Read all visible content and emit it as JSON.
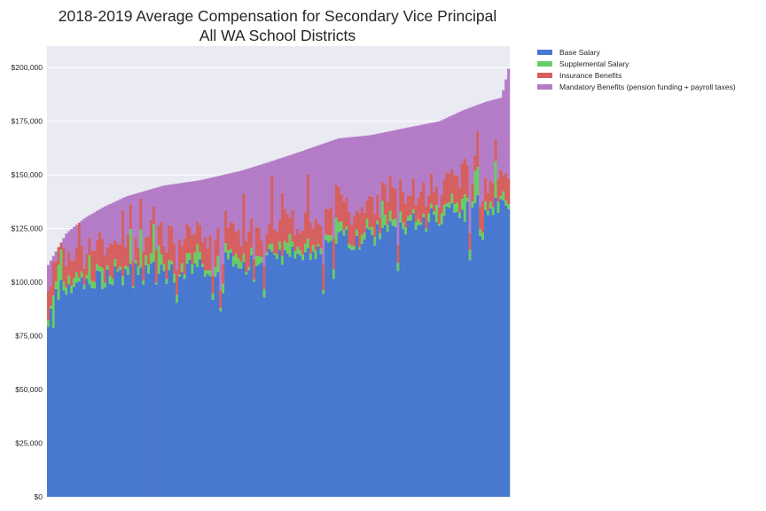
{
  "chart_data": {
    "type": "bar",
    "stacked": true,
    "title": "2018-2019 Average Compensation for Secondary Vice Principal",
    "subtitle": "All WA School Districts",
    "xlabel": "",
    "ylabel": "",
    "ylim": [
      0,
      210000
    ],
    "yticks": [
      0,
      25000,
      50000,
      75000,
      100000,
      125000,
      150000,
      175000,
      200000
    ],
    "ytick_labels": [
      "$0",
      "$25,000",
      "$50,000",
      "$75,000",
      "$100,000",
      "$125,000",
      "$150,000",
      "$175,000",
      "$200,000"
    ],
    "grid": true,
    "x_tick_labels_shown": false,
    "legend_position": "outside top-right",
    "bar_count": 180,
    "series": [
      {
        "name": "Base Salary",
        "color": "#4878cf"
      },
      {
        "name": "Supplemental Salary",
        "color": "#6acc65"
      },
      {
        "name": "Insurance Benefits",
        "color": "#d65f5f"
      },
      {
        "name": "Mandatory Benefits (pension funding + payroll taxes)",
        "color": "#b47cc7"
      }
    ],
    "total_profile": [
      [
        0,
        108000
      ],
      [
        0.04,
        123000
      ],
      [
        0.08,
        130000
      ],
      [
        0.12,
        135000
      ],
      [
        0.17,
        140000
      ],
      [
        0.25,
        145000
      ],
      [
        0.33,
        147500
      ],
      [
        0.42,
        152000
      ],
      [
        0.48,
        156000
      ],
      [
        0.55,
        161000
      ],
      [
        0.63,
        167000
      ],
      [
        0.7,
        168500
      ],
      [
        0.78,
        172000
      ],
      [
        0.85,
        175000
      ],
      [
        0.9,
        180000
      ],
      [
        0.95,
        184000
      ],
      [
        0.985,
        186000
      ],
      [
        1.0,
        199500
      ]
    ],
    "base_profile": [
      [
        0,
        78000
      ],
      [
        0.02,
        97000
      ],
      [
        0.1,
        100000
      ],
      [
        0.25,
        105000
      ],
      [
        0.45,
        110000
      ],
      [
        0.6,
        117000
      ],
      [
        0.75,
        124000
      ],
      [
        0.85,
        130000
      ],
      [
        0.93,
        135000
      ],
      [
        1.0,
        135000
      ]
    ],
    "supplemental_typical": 3000,
    "insurance_typical": 12000,
    "seed": 7
  }
}
